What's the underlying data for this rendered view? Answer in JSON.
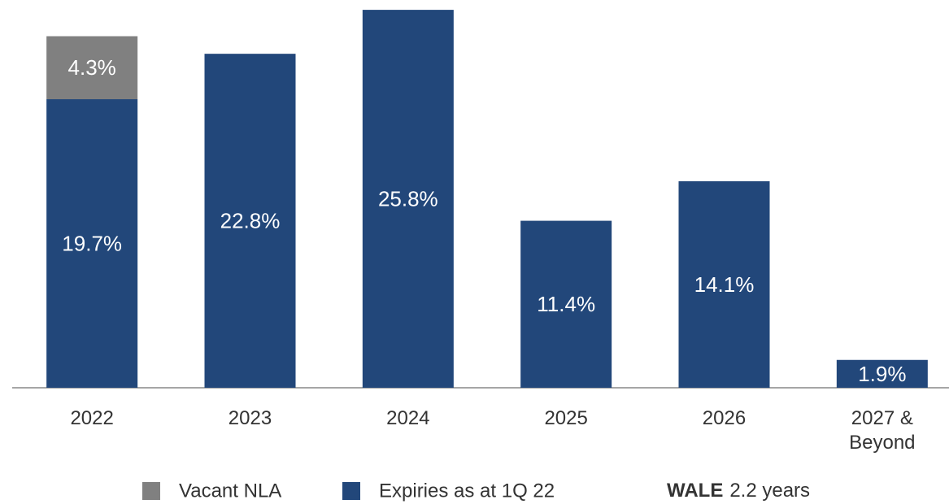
{
  "chart_data": {
    "type": "stacked_bar",
    "categories": [
      "2022",
      "2023",
      "2024",
      "2025",
      "2026",
      "2027 & Beyond"
    ],
    "series": [
      {
        "name": "Vacant NLA",
        "color": "#808080",
        "values": [
          4.3,
          null,
          null,
          null,
          null,
          null
        ],
        "value_labels": [
          "4.3%",
          null,
          null,
          null,
          null,
          null
        ]
      },
      {
        "name": "Expiries as at 1Q 22",
        "color": "#22477a",
        "values": [
          19.7,
          22.8,
          25.8,
          11.4,
          14.1,
          1.9
        ],
        "value_labels": [
          "19.7%",
          "22.8%",
          "25.8%",
          "11.4%",
          "14.1%",
          "1.9%"
        ]
      }
    ],
    "ylim": [
      0,
      26
    ],
    "annotation": {
      "label": "WALE",
      "text": "2.2 years"
    }
  }
}
